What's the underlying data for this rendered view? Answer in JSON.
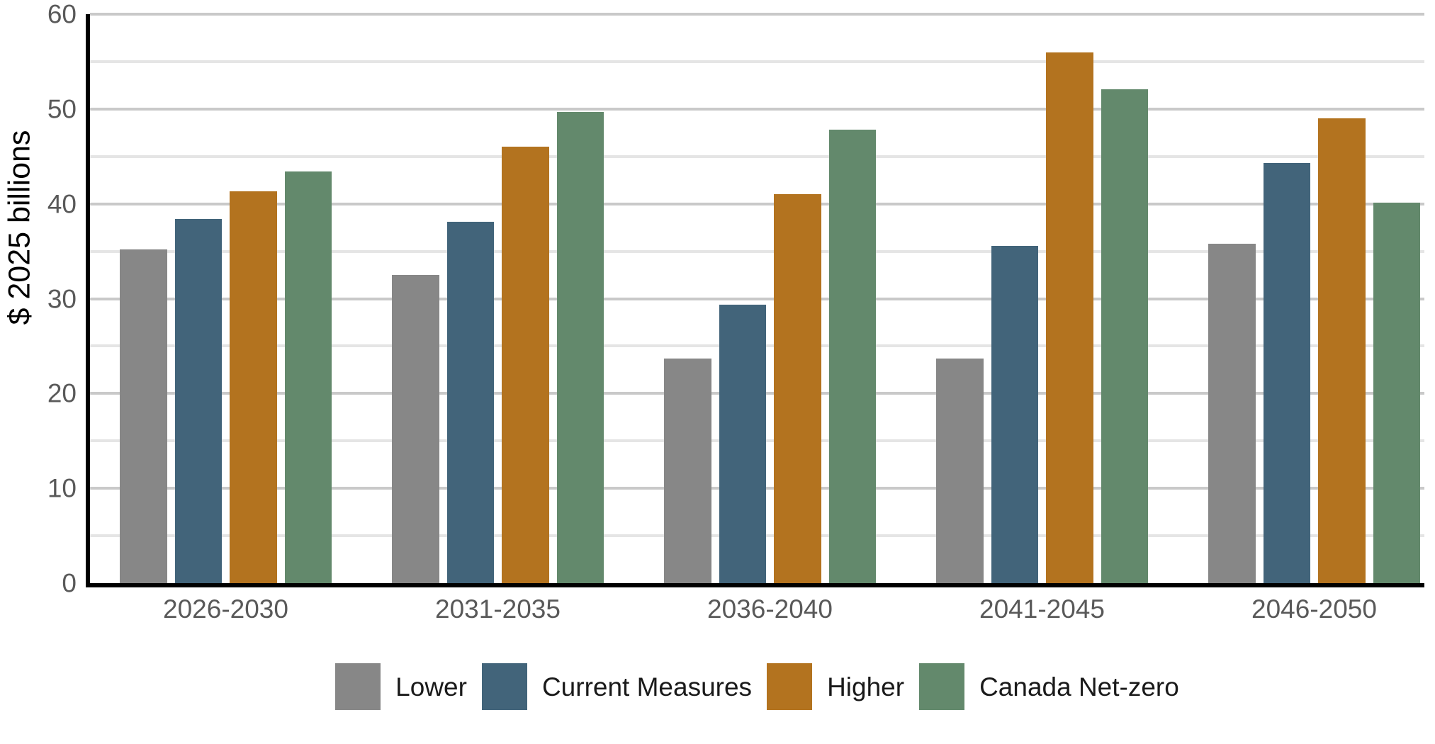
{
  "chart_data": {
    "type": "bar",
    "title": "",
    "ylabel": "$ 2025 billions",
    "xlabel": "",
    "categories": [
      "2026-2030",
      "2031-2035",
      "2036-2040",
      "2041-2045",
      "2046-2050"
    ],
    "series": [
      {
        "name": "Lower",
        "color": "#878787",
        "values": [
          35.2,
          32.5,
          23.7,
          23.7,
          35.8
        ]
      },
      {
        "name": "Current Measures",
        "color": "#42647A",
        "values": [
          38.4,
          38.1,
          29.4,
          35.6,
          44.3
        ]
      },
      {
        "name": "Higher",
        "color": "#B3731F",
        "values": [
          41.3,
          46.0,
          41.0,
          56.0,
          49.0
        ]
      },
      {
        "name": "Canada Net-zero",
        "color": "#63896C",
        "values": [
          43.4,
          49.7,
          47.8,
          52.1,
          40.1
        ]
      }
    ],
    "ylim": [
      0,
      60
    ],
    "yticks": [
      0,
      10,
      20,
      30,
      40,
      50,
      60
    ],
    "minor_gridlines": [
      5,
      15,
      25,
      35,
      45,
      55
    ],
    "grid": true,
    "legend_position": "bottom",
    "colors": {
      "axis": "#000000",
      "grid_major": "#c9c9c9",
      "grid_minor": "#e5e5e5",
      "tick_label": "#595959",
      "legend_label": "#1a1a1a",
      "axis_title": "#000000"
    }
  }
}
